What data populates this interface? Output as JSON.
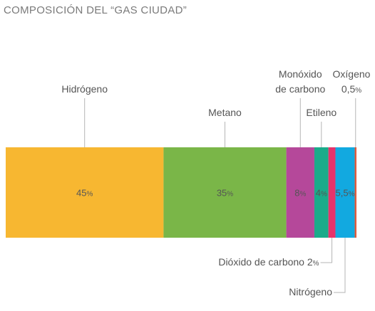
{
  "title": "COMPOSICIÓN DEL “GAS CIUDAD”",
  "chart_data": {
    "type": "bar",
    "stacked": true,
    "orientation": "horizontal",
    "unit": "%",
    "segments": [
      {
        "name": "Hidrógeno",
        "value": 45,
        "color": "#f7b731",
        "display": "45",
        "inside_label": "45",
        "label_lines": [
          "Hidrógeno"
        ],
        "label_position": "above",
        "text_color": "#555555"
      },
      {
        "name": "Metano",
        "value": 35,
        "color": "#7ab648",
        "display": "35",
        "inside_label": "35",
        "label_lines": [
          "Metano"
        ],
        "label_position": "above",
        "text_color": "#ffffff"
      },
      {
        "name": "Monóxido de carbono",
        "value": 8,
        "color": "#b5489a",
        "display": "8",
        "inside_label": "8",
        "label_lines": [
          "Monóxido",
          "de carbono"
        ],
        "label_position": "above",
        "text_color": "#ffffff"
      },
      {
        "name": "Etileno",
        "value": 4,
        "color": "#1aab8a",
        "display": "4",
        "inside_label": "4",
        "label_lines": [
          "Etileno"
        ],
        "label_position": "above",
        "text_color": "#ffffff"
      },
      {
        "name": "Dióxido de carbono",
        "value": 2,
        "color": "#e6336b",
        "display": "2",
        "inside_label": "",
        "label_lines": [
          "Dióxido de carbono 2"
        ],
        "label_position": "below",
        "text_color": "#ffffff"
      },
      {
        "name": "Nitrógeno",
        "value": 5.5,
        "color": "#12a9e0",
        "display": "5,5",
        "inside_label": "5,5",
        "label_lines": [
          "Nitrógeno"
        ],
        "label_position": "below2",
        "text_color": "#ffffff"
      },
      {
        "name": "Oxígeno",
        "value": 0.5,
        "color": "#e05a3c",
        "display": "0,5",
        "inside_label": "",
        "label_lines": [
          "Oxígeno",
          "0,5"
        ],
        "label_position": "above",
        "text_color": "#ffffff"
      }
    ]
  }
}
